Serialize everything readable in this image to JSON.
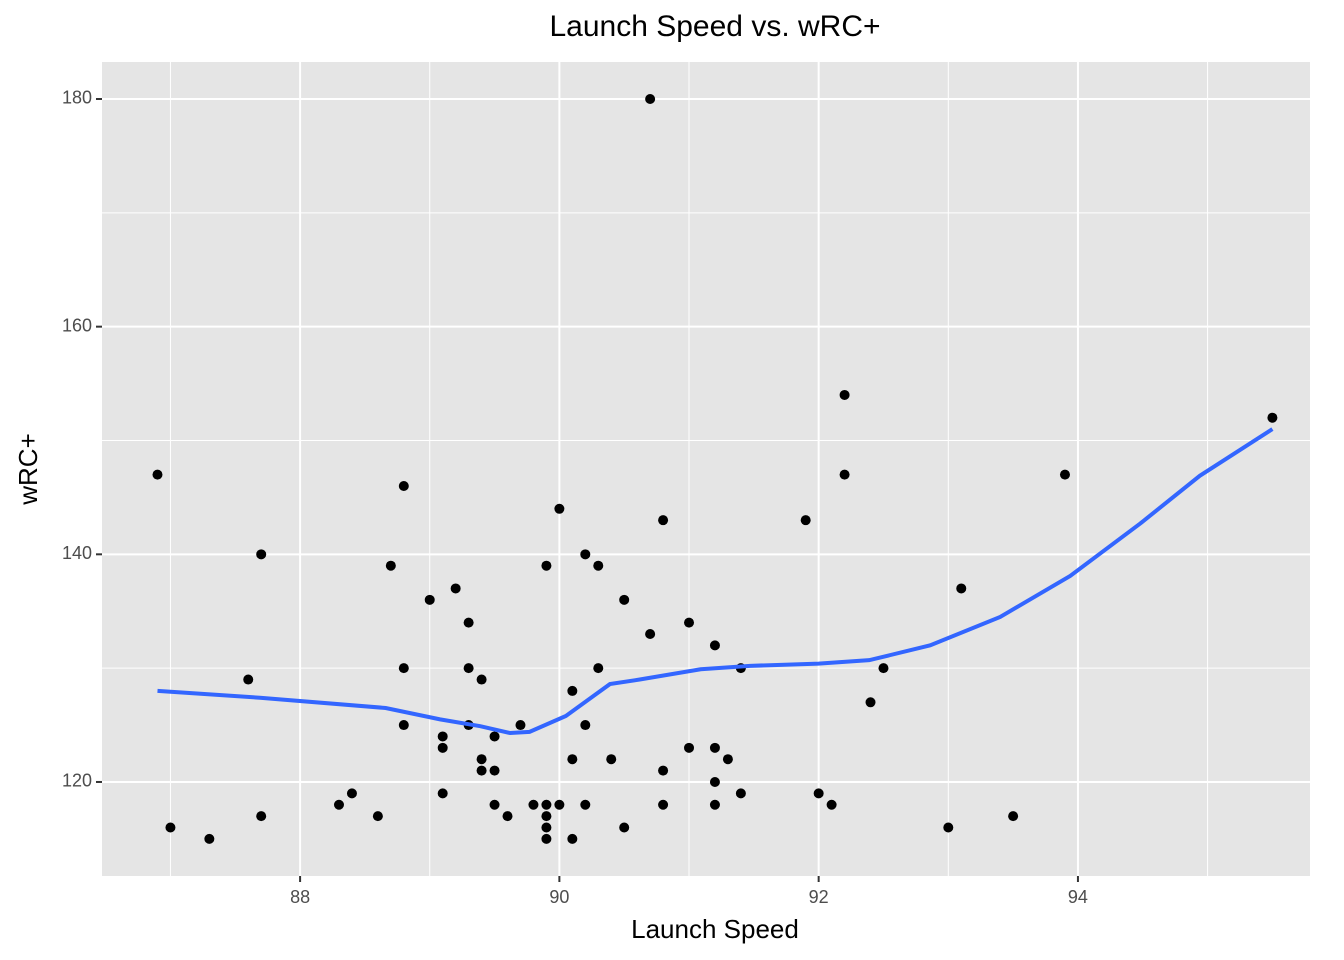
{
  "chart_data": {
    "type": "scatter",
    "title": "Launch Speed vs. wRC+",
    "x_label": "Launch Speed",
    "y_label": "wRC+",
    "xlim": [
      86.472,
      95.79
    ],
    "ylim": [
      111.74,
      183.25
    ],
    "xticks": [
      88,
      90,
      92,
      94
    ],
    "yticks": [
      120,
      140,
      160,
      180
    ],
    "minor_xticks": [
      87,
      89,
      91,
      93,
      95
    ],
    "minor_yticks": [
      130,
      150,
      170
    ],
    "grid": true,
    "points": {
      "color": "#000000",
      "x": [
        86.9,
        87.0,
        87.3,
        87.6,
        87.7,
        87.7,
        88.3,
        88.4,
        88.6,
        88.7,
        88.8,
        88.8,
        88.8,
        89.0,
        89.1,
        89.1,
        89.1,
        89.2,
        89.3,
        89.3,
        89.3,
        89.4,
        89.4,
        89.4,
        89.5,
        89.5,
        89.5,
        89.6,
        89.7,
        89.8,
        89.9,
        89.9,
        89.9,
        89.9,
        89.9,
        90.0,
        90.0,
        90.1,
        90.1,
        90.1,
        90.2,
        90.2,
        90.2,
        90.3,
        90.3,
        90.4,
        90.5,
        90.5,
        90.7,
        90.7,
        90.8,
        90.8,
        90.8,
        91.0,
        91.0,
        91.2,
        91.2,
        91.2,
        91.2,
        91.3,
        91.4,
        91.4,
        91.9,
        92.0,
        92.1,
        92.2,
        92.2,
        92.4,
        92.5,
        93.0,
        93.1,
        93.5,
        93.9,
        95.5
      ],
      "y": [
        147,
        116,
        115,
        129,
        140,
        117,
        118,
        119,
        117,
        139,
        146,
        130,
        125,
        136,
        124,
        123,
        119,
        137,
        134,
        130,
        125,
        129,
        122,
        121,
        124,
        121,
        118,
        117,
        125,
        118,
        139,
        118,
        117,
        116,
        115,
        144,
        118,
        128,
        122,
        115,
        140,
        125,
        118,
        139,
        130,
        122,
        136,
        116,
        180,
        133,
        143,
        121,
        118,
        134,
        123,
        132,
        123,
        120,
        118,
        122,
        130,
        119,
        143,
        119,
        118,
        154,
        147,
        127,
        130,
        116,
        137,
        117,
        147,
        152
      ]
    },
    "smooth": {
      "color": "#3366FF",
      "x": [
        86.9,
        87.69,
        88.66,
        89.08,
        89.39,
        89.62,
        89.77,
        90.05,
        90.28,
        90.39,
        90.62,
        91.09,
        91.47,
        92.0,
        92.39,
        92.86,
        93.4,
        93.94,
        94.48,
        94.94,
        95.5
      ],
      "y": [
        128.0,
        127.4,
        126.5,
        125.5,
        124.9,
        124.3,
        124.4,
        125.8,
        127.7,
        128.6,
        129.0,
        129.9,
        130.2,
        130.4,
        130.7,
        132.0,
        134.5,
        138.1,
        142.7,
        146.9,
        151.0
      ]
    }
  }
}
